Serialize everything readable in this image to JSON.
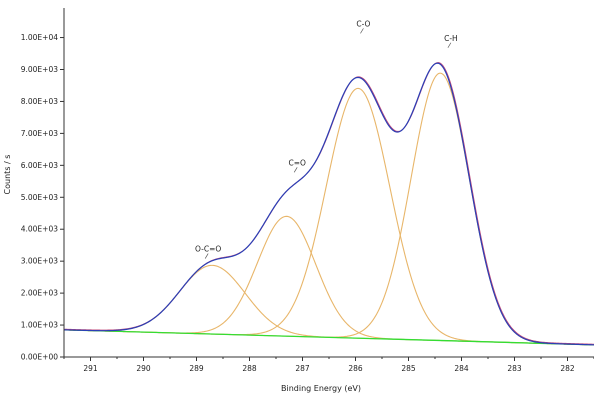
{
  "chart_data": {
    "type": "line",
    "title": "",
    "xlabel": "Binding Energy (eV)",
    "ylabel": "Counts / s",
    "xlim": [
      291.5,
      281.5
    ],
    "ylim": [
      0,
      10800
    ],
    "x_reversed": true,
    "grid": false,
    "x_ticks": [
      291,
      290,
      289,
      288,
      287,
      286,
      285,
      284,
      283,
      282
    ],
    "y_ticks": [
      {
        "value": 0,
        "label": "0.00E+00"
      },
      {
        "value": 1000,
        "label": "1.00E+03"
      },
      {
        "value": 2000,
        "label": "2.00E+03"
      },
      {
        "value": 3000,
        "label": "3.00E+03"
      },
      {
        "value": 4000,
        "label": "4.00E+03"
      },
      {
        "value": 5000,
        "label": "5.00E+03"
      },
      {
        "value": 6000,
        "label": "6.00E+03"
      },
      {
        "value": 7000,
        "label": "7.00E+03"
      },
      {
        "value": 8000,
        "label": "8.00E+03"
      },
      {
        "value": 9000,
        "label": "9.00E+03"
      },
      {
        "value": 10000,
        "label": "1.00E+04"
      }
    ],
    "background": {
      "start_x": 291.5,
      "start_y": 850,
      "end_x": 281.5,
      "end_y": 380,
      "color": "#33dd33"
    },
    "peaks": [
      {
        "name": "O-C=O",
        "center": 288.7,
        "height": 2150,
        "sigma": 0.62,
        "color": "#e8b66a",
        "label_x": 288.78,
        "label_y": 3300
      },
      {
        "name": "C=O",
        "center": 287.3,
        "height": 3750,
        "sigma": 0.55,
        "color": "#e8b66a",
        "label_x": 287.1,
        "label_y": 6000
      },
      {
        "name": "C-O",
        "center": 285.95,
        "height": 7820,
        "sigma": 0.6,
        "color": "#e8b66a",
        "label_x": 285.85,
        "label_y": 10350
      },
      {
        "name": "C-H",
        "center": 284.4,
        "height": 8370,
        "sigma": 0.55,
        "color": "#e8b66a",
        "label_x": 284.2,
        "label_y": 9900
      }
    ],
    "envelope_color": "#2b3fb5",
    "envelope_shadow_color": "#c04a7a"
  }
}
